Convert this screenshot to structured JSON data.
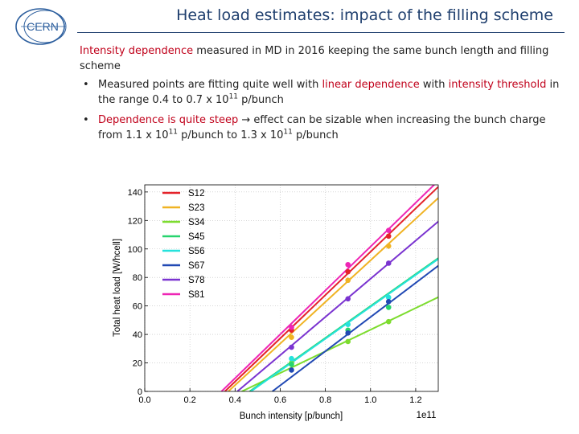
{
  "header": {
    "title": "Heat load estimates: impact of the filling scheme",
    "logo_text": "CERN"
  },
  "intro": {
    "highlight": "Intensity dependence",
    "rest": " measured in MD in 2016 keeping the same bunch length and filling scheme"
  },
  "bullets": [
    {
      "bullet": "•",
      "t1": "Measured points are fitting quite well with ",
      "h1": "linear dependence",
      "t2": " with ",
      "h2": "intensity threshold",
      "t3": " in the range 0.4 to 0.7  x 10",
      "sup1": "11",
      "t4": " p/bunch"
    },
    {
      "bullet": "•",
      "h1": "Dependence is quite steep",
      "arrow": " → ",
      "t1": "effect can be sizable when increasing the bunch charge from 1.1 x 10",
      "sup1": "11",
      "t2": " p/bunch to 1.3 x 10",
      "sup2": "11",
      "t3": " p/bunch"
    }
  ],
  "chart_data": {
    "type": "scatter",
    "title": "",
    "xlabel": "Bunch intensity [p/bunch]",
    "ylabel": "Total heat load [W/hcell]",
    "x_multiplier": "1e11",
    "xlim": [
      0.0,
      1.3
    ],
    "ylim": [
      0,
      145
    ],
    "xticks": [
      "0.0",
      "0.2",
      "0.4",
      "0.6",
      "0.8",
      "1.0",
      "1.2"
    ],
    "yticks": [
      "0",
      "20",
      "40",
      "60",
      "80",
      "100",
      "120",
      "140"
    ],
    "x": [
      0.65,
      0.9,
      1.08
    ],
    "legend_position": "top-left",
    "series": [
      {
        "name": "S12",
        "color": "#e4232a",
        "values": [
          43,
          84,
          109
        ],
        "fit_x0": 0.355,
        "slope": 152
      },
      {
        "name": "S23",
        "color": "#f0b323",
        "values": [
          38,
          78,
          102
        ],
        "fit_x0": 0.37,
        "slope": 146
      },
      {
        "name": "S34",
        "color": "#7ddc2f",
        "values": [
          20,
          35,
          49
        ],
        "fit_x0": 0.43,
        "slope": 76
      },
      {
        "name": "S45",
        "color": "#27d46e",
        "values": [
          19,
          43,
          59
        ],
        "fit_x0": 0.465,
        "slope": 112
      },
      {
        "name": "S56",
        "color": "#26e2dc",
        "values": [
          23,
          47,
          66
        ],
        "fit_x0": 0.47,
        "slope": 112
      },
      {
        "name": "S67",
        "color": "#2149b4",
        "values": [
          15,
          41,
          63
        ],
        "fit_x0": 0.565,
        "slope": 120
      },
      {
        "name": "S78",
        "color": "#7a33d0",
        "values": [
          31,
          65,
          90
        ],
        "fit_x0": 0.41,
        "slope": 134
      },
      {
        "name": "S81",
        "color": "#ee26b5",
        "values": [
          45,
          89,
          113
        ],
        "fit_x0": 0.34,
        "slope": 154
      }
    ]
  }
}
